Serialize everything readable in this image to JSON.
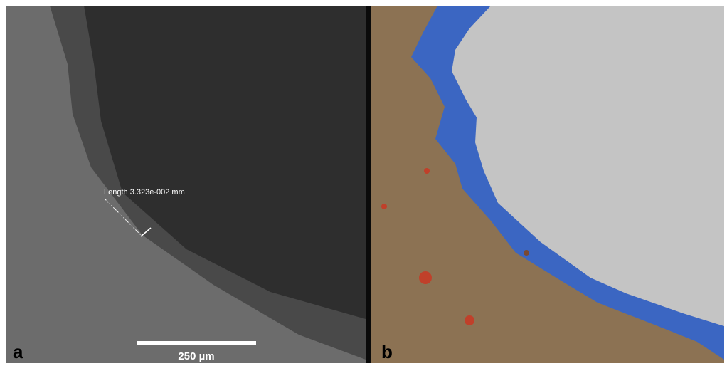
{
  "panels": [
    {
      "label": "a",
      "measurement": "Length 3.323e-002 mm",
      "scale_bar": "250 µm"
    },
    {
      "label": "b"
    }
  ]
}
